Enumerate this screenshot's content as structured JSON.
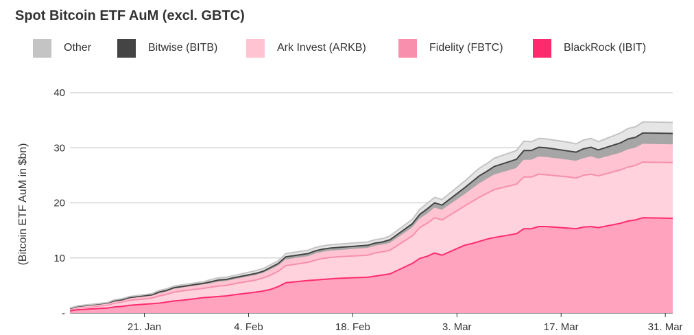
{
  "chart_data": {
    "type": "area",
    "stacked": true,
    "title": "Spot Bitcoin ETF AuM (excl. GBTC)",
    "ylabel": "(Bitcoin ETF AuM in $bn)",
    "xlabel": "",
    "ylim": [
      0,
      40
    ],
    "yticks": [
      0,
      10,
      20,
      30,
      40
    ],
    "ytick_labels": [
      "-",
      "10",
      "20",
      "30",
      "40"
    ],
    "xticks": [
      {
        "date": "2024-01-21",
        "label": "21. Jan"
      },
      {
        "date": "2024-02-04",
        "label": "4. Feb"
      },
      {
        "date": "2024-02-18",
        "label": "18. Feb"
      },
      {
        "date": "2024-03-03",
        "label": "3. Mar"
      },
      {
        "date": "2024-03-17",
        "label": "17. Mar"
      },
      {
        "date": "2024-03-31",
        "label": "31. Mar"
      }
    ],
    "xlim": [
      "2024-01-11",
      "2024-04-01"
    ],
    "grid": true,
    "legend_position": "top",
    "dates": [
      "2024-01-11",
      "2024-01-12",
      "2024-01-16",
      "2024-01-17",
      "2024-01-18",
      "2024-01-19",
      "2024-01-22",
      "2024-01-23",
      "2024-01-24",
      "2024-01-25",
      "2024-01-26",
      "2024-01-29",
      "2024-01-30",
      "2024-01-31",
      "2024-02-01",
      "2024-02-02",
      "2024-02-05",
      "2024-02-06",
      "2024-02-07",
      "2024-02-08",
      "2024-02-09",
      "2024-02-12",
      "2024-02-13",
      "2024-02-14",
      "2024-02-15",
      "2024-02-16",
      "2024-02-20",
      "2024-02-21",
      "2024-02-22",
      "2024-02-23",
      "2024-02-26",
      "2024-02-27",
      "2024-02-28",
      "2024-02-29",
      "2024-03-01",
      "2024-03-04",
      "2024-03-05",
      "2024-03-06",
      "2024-03-07",
      "2024-03-08",
      "2024-03-11",
      "2024-03-12",
      "2024-03-13",
      "2024-03-14",
      "2024-03-15",
      "2024-03-18",
      "2024-03-19",
      "2024-03-20",
      "2024-03-21",
      "2024-03-22",
      "2024-03-25",
      "2024-03-26",
      "2024-03-27",
      "2024-03-28",
      "2024-04-01"
    ],
    "series": [
      {
        "name": "BlackRock (IBIT)",
        "color": "#FF2A6D",
        "fill": "#FFA3BF",
        "values": [
          0.4,
          0.6,
          0.9,
          1.1,
          1.2,
          1.4,
          1.7,
          1.8,
          2.0,
          2.2,
          2.3,
          2.8,
          2.9,
          3.0,
          3.1,
          3.3,
          3.8,
          4.0,
          4.3,
          4.8,
          5.5,
          5.9,
          6.0,
          6.1,
          6.2,
          6.3,
          6.5,
          6.7,
          6.9,
          7.1,
          9.0,
          9.9,
          10.3,
          10.9,
          10.5,
          12.3,
          12.6,
          13.0,
          13.4,
          13.7,
          14.4,
          15.3,
          15.3,
          15.7,
          15.7,
          15.4,
          15.3,
          15.6,
          15.7,
          15.5,
          16.3,
          16.7,
          16.9,
          17.3,
          17.2
        ]
      },
      {
        "name": "Fidelity (FBTC)",
        "color": "#F78FAD",
        "fill": "#FFD2DE",
        "values": [
          0.2,
          0.3,
          0.5,
          0.7,
          0.8,
          0.9,
          1.0,
          1.3,
          1.4,
          1.6,
          1.7,
          1.7,
          1.8,
          1.9,
          1.9,
          2.0,
          2.2,
          2.4,
          2.6,
          2.8,
          3.1,
          3.3,
          3.6,
          3.8,
          3.9,
          3.9,
          4.0,
          4.2,
          4.2,
          4.3,
          5.0,
          5.6,
          6.0,
          6.4,
          6.4,
          7.1,
          7.6,
          8.0,
          8.3,
          8.7,
          9.0,
          9.4,
          9.4,
          9.5,
          9.4,
          9.3,
          9.2,
          9.4,
          9.5,
          9.4,
          9.7,
          9.8,
          9.9,
          10.1,
          10.1
        ]
      },
      {
        "name": "Ark Invest (ARKB)",
        "color": "#FFC3D2",
        "fill": "#FFC3D2",
        "values": [
          0.1,
          0.1,
          0.2,
          0.2,
          0.2,
          0.3,
          0.3,
          0.4,
          0.4,
          0.5,
          0.5,
          0.6,
          0.6,
          0.7,
          0.7,
          0.7,
          0.8,
          0.8,
          0.9,
          0.9,
          1.0,
          1.0,
          1.1,
          1.1,
          1.1,
          1.1,
          1.2,
          1.2,
          1.2,
          1.2,
          1.4,
          1.5,
          1.6,
          1.7,
          1.7,
          2.0,
          2.2,
          2.4,
          2.5,
          2.6,
          2.8,
          3.0,
          3.0,
          3.1,
          3.1,
          3.0,
          3.0,
          3.0,
          3.1,
          3.0,
          3.0,
          3.1,
          3.1,
          3.2,
          3.2
        ]
      },
      {
        "name": "Bitwise (BITB)",
        "color": "#444444",
        "fill": "#A6A6A6",
        "values": [
          0.1,
          0.2,
          0.2,
          0.2,
          0.2,
          0.2,
          0.3,
          0.3,
          0.3,
          0.3,
          0.3,
          0.3,
          0.4,
          0.4,
          0.4,
          0.4,
          0.4,
          0.4,
          0.5,
          0.5,
          0.6,
          0.6,
          0.6,
          0.6,
          0.6,
          0.6,
          0.6,
          0.6,
          0.6,
          0.7,
          0.8,
          0.9,
          1.0,
          1.0,
          1.0,
          1.3,
          1.4,
          1.5,
          1.5,
          1.6,
          1.7,
          1.8,
          1.8,
          1.8,
          1.8,
          1.7,
          1.7,
          1.8,
          1.8,
          1.7,
          1.9,
          2.0,
          2.0,
          2.1,
          2.1
        ]
      },
      {
        "name": "Other",
        "color": "#C4C4C4",
        "fill": "#E5E5E5",
        "values": [
          0.1,
          0.1,
          0.1,
          0.2,
          0.2,
          0.2,
          0.2,
          0.3,
          0.3,
          0.3,
          0.3,
          0.3,
          0.4,
          0.4,
          0.4,
          0.4,
          0.5,
          0.5,
          0.5,
          0.5,
          0.6,
          0.6,
          0.6,
          0.6,
          0.6,
          0.6,
          0.6,
          0.6,
          0.6,
          0.7,
          0.8,
          0.9,
          1.0,
          1.0,
          1.0,
          1.2,
          1.3,
          1.4,
          1.4,
          1.5,
          1.6,
          1.7,
          1.6,
          1.6,
          1.6,
          1.6,
          1.5,
          1.6,
          1.6,
          1.5,
          1.8,
          1.9,
          1.9,
          2.0,
          2.0
        ]
      }
    ]
  }
}
